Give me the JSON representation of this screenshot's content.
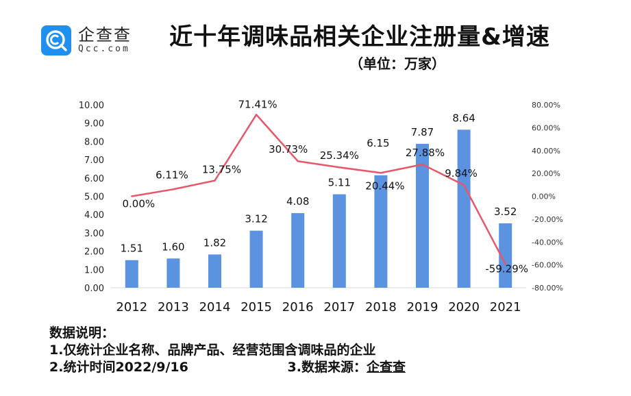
{
  "logo": {
    "name_cn": "企查查",
    "name_en": "Qcc.com",
    "brand_color": "#1E90F0",
    "icon": "qcc-logo-icon"
  },
  "header": {
    "title": "近十年调味品相关企业注册量&增速",
    "subtitle": "（单位：万家）"
  },
  "chart_data": {
    "type": "bar+line",
    "title": "近十年调味品相关企业注册量&增速",
    "subtitle": "（单位：万家）",
    "categories": [
      "2012",
      "2013",
      "2014",
      "2015",
      "2016",
      "2017",
      "2018",
      "2019",
      "2020",
      "2021"
    ],
    "series": [
      {
        "name": "注册量",
        "type": "bar",
        "axis": "left",
        "color": "#5B93E1",
        "values": [
          1.51,
          1.6,
          1.82,
          3.12,
          4.08,
          5.11,
          6.15,
          7.87,
          8.64,
          3.52
        ],
        "labels": [
          "1.51",
          "1.60",
          "1.82",
          "3.12",
          "4.08",
          "5.11",
          "6.15",
          "7.87",
          "8.64",
          "3.52"
        ]
      },
      {
        "name": "增速",
        "type": "line",
        "axis": "right",
        "color": "#E8566A",
        "values": [
          0.0,
          6.11,
          13.75,
          71.41,
          30.73,
          25.34,
          20.44,
          27.88,
          9.84,
          -59.29
        ],
        "labels": [
          "0.00%",
          "6.11%",
          "13.75%",
          "71.41%",
          "30.73%",
          "25.34%",
          "20.44%",
          "27.88%",
          "9.84%",
          "-59.29%"
        ]
      }
    ],
    "left_axis": {
      "ylim": [
        0,
        10
      ],
      "ticks": [
        "0.00",
        "1.00",
        "2.00",
        "3.00",
        "4.00",
        "5.00",
        "6.00",
        "7.00",
        "8.00",
        "9.00",
        "10.00"
      ]
    },
    "right_axis": {
      "ylim": [
        -80,
        80
      ],
      "ticks": [
        "-80.00%",
        "-60.00%",
        "-40.00%",
        "-20.00%",
        "0.00%",
        "20.00%",
        "40.00%",
        "60.00%",
        "80.00%"
      ]
    },
    "grid": false,
    "legend": "none"
  },
  "notes": {
    "heading": "数据说明：",
    "line1": "1.仅统计企业名称、品牌产品、经营范围含调味品的企业",
    "line2": "2.统计时间2022/9/16",
    "line3_prefix": "3.数据来源：",
    "line3_source": "企查查"
  }
}
